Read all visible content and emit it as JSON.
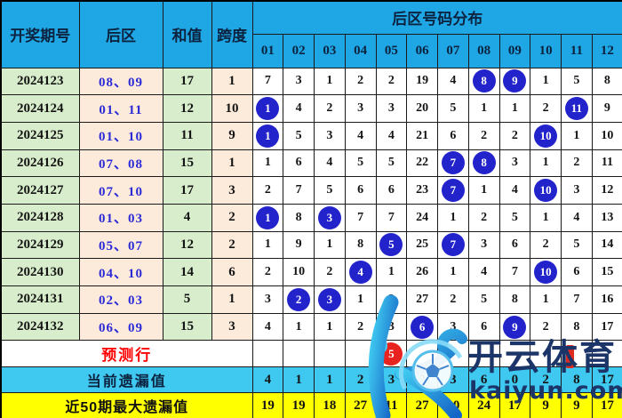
{
  "chart_data": {
    "type": "table",
    "title": "后区号码分布",
    "headers": {
      "period": "开奖期号",
      "back_zone": "后区",
      "sum": "和值",
      "span": "跨度",
      "distribution": "后区号码分布"
    },
    "columns": [
      "01",
      "02",
      "03",
      "04",
      "05",
      "06",
      "07",
      "08",
      "09",
      "10",
      "11",
      "12"
    ],
    "rows": [
      {
        "period": "2024123",
        "back_zone": "08、09",
        "sum": "17",
        "span": "1",
        "cells": [
          "7",
          "3",
          "1",
          "2",
          "2",
          "19",
          "4",
          "8",
          "9",
          "1",
          "5",
          "8"
        ],
        "balls": [
          8,
          9
        ]
      },
      {
        "period": "2024124",
        "back_zone": "01、11",
        "sum": "12",
        "span": "10",
        "cells": [
          "1",
          "4",
          "2",
          "3",
          "3",
          "20",
          "5",
          "1",
          "1",
          "2",
          "11",
          "9"
        ],
        "balls": [
          1,
          11
        ]
      },
      {
        "period": "2024125",
        "back_zone": "01、10",
        "sum": "11",
        "span": "9",
        "cells": [
          "1",
          "5",
          "3",
          "4",
          "4",
          "21",
          "6",
          "2",
          "2",
          "10",
          "1",
          "10"
        ],
        "balls": [
          1,
          10
        ]
      },
      {
        "period": "2024126",
        "back_zone": "07、08",
        "sum": "15",
        "span": "1",
        "cells": [
          "1",
          "6",
          "4",
          "5",
          "5",
          "22",
          "7",
          "8",
          "3",
          "1",
          "2",
          "11"
        ],
        "balls": [
          7,
          8
        ]
      },
      {
        "period": "2024127",
        "back_zone": "07、10",
        "sum": "17",
        "span": "3",
        "cells": [
          "2",
          "7",
          "5",
          "6",
          "6",
          "23",
          "7",
          "1",
          "4",
          "10",
          "3",
          "12"
        ],
        "balls": [
          7,
          10
        ]
      },
      {
        "period": "2024128",
        "back_zone": "01、03",
        "sum": "4",
        "span": "2",
        "cells": [
          "1",
          "8",
          "3",
          "7",
          "7",
          "24",
          "1",
          "2",
          "5",
          "1",
          "4",
          "13"
        ],
        "balls": [
          1,
          3
        ]
      },
      {
        "period": "2024129",
        "back_zone": "05、07",
        "sum": "12",
        "span": "2",
        "cells": [
          "1",
          "9",
          "1",
          "8",
          "5",
          "25",
          "7",
          "3",
          "6",
          "2",
          "5",
          "14"
        ],
        "balls": [
          5,
          7
        ]
      },
      {
        "period": "2024130",
        "back_zone": "04、10",
        "sum": "14",
        "span": "6",
        "cells": [
          "2",
          "10",
          "2",
          "4",
          "1",
          "26",
          "1",
          "4",
          "7",
          "10",
          "6",
          "15"
        ],
        "balls": [
          4,
          10
        ]
      },
      {
        "period": "2024131",
        "back_zone": "02、03",
        "sum": "5",
        "span": "1",
        "cells": [
          "3",
          "2",
          "3",
          "1",
          "2",
          "27",
          "2",
          "5",
          "8",
          "1",
          "7",
          "16"
        ],
        "balls": [
          2,
          3
        ]
      },
      {
        "period": "2024132",
        "back_zone": "06、09",
        "sum": "15",
        "span": "3",
        "cells": [
          "4",
          "1",
          "1",
          "2",
          "3",
          "6",
          "3",
          "6",
          "9",
          "2",
          "8",
          "17"
        ],
        "balls": [
          6,
          9
        ]
      }
    ],
    "prediction": {
      "label": "预测行",
      "balls": [
        5
      ]
    },
    "current_omission": {
      "label": "当前遗漏值",
      "values": [
        "4",
        "1",
        "1",
        "2",
        "3",
        "0",
        "3",
        "6",
        "0",
        "2",
        "8",
        "17"
      ]
    },
    "max_omission_50": {
      "label": "近50期最大遗漏值",
      "values": [
        "19",
        "19",
        "18",
        "27",
        "11",
        "27",
        "20",
        "24",
        "17",
        "9",
        "9",
        "17"
      ]
    }
  },
  "colors": {
    "header_blue": "#1FA6E4",
    "green_cell": "#D8EDCB",
    "peach_cell": "#FCEADB",
    "ball_blue": "#2323CC",
    "ball_red": "#E8231F",
    "back_zone_text": "#2B2BD6",
    "prediction_text": "#FF0000",
    "current_row_cyan": "#3FC8F0",
    "max_row_yellow": "#FFFF00"
  },
  "watermark": {
    "brand": "开云体育",
    "domain": "kaiyun.com"
  }
}
